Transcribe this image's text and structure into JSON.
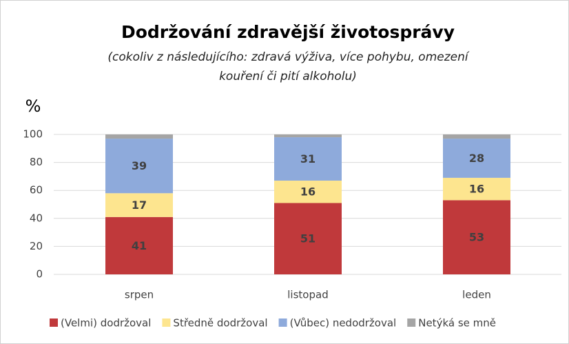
{
  "chart_data": {
    "type": "stacked_bar",
    "title": "Dodržování zdravější životosprávy",
    "subtitle": [
      "(cokoliv z následujícího: zdravá výživa, více pohybu, omezení",
      "kouření či pití alkoholu)"
    ],
    "y_label": "%",
    "categories": [
      "srpen",
      "listopad",
      "leden"
    ],
    "series": [
      {
        "name": "(Velmi) dodržoval",
        "color": "#c0393b",
        "values": [
          41,
          51,
          53
        ]
      },
      {
        "name": "Středně dodržoval",
        "color": "#fde58f",
        "values": [
          17,
          16,
          16
        ]
      },
      {
        "name": "(Vůbec) nedodržoval",
        "color": "#8eaadb",
        "values": [
          39,
          31,
          28
        ]
      },
      {
        "name": "Netýká se mně",
        "color": "#a5a5a5",
        "values": [
          3,
          2,
          3
        ]
      }
    ],
    "ylim": [
      0,
      100
    ],
    "yticks": [
      0,
      20,
      40,
      60,
      80,
      100
    ],
    "grid": true,
    "legend": "bottom"
  }
}
